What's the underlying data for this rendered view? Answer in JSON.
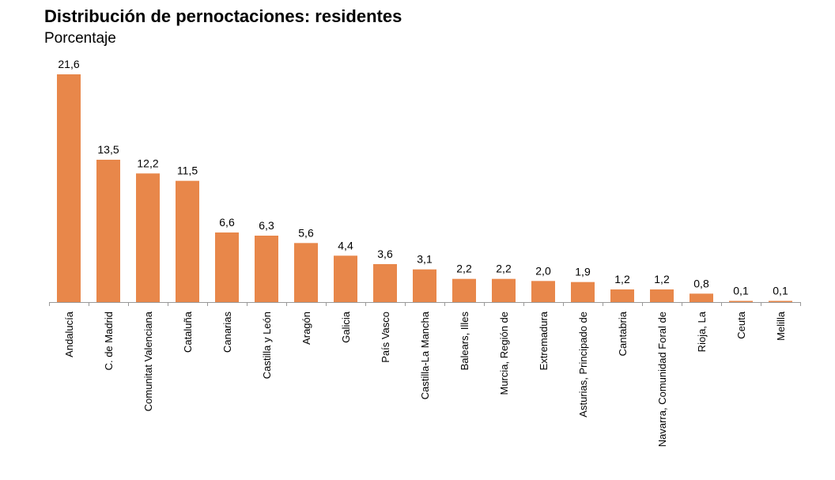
{
  "chart_data": {
    "type": "bar",
    "title": "Distribución de pernoctaciones: residentes",
    "subtitle": "Porcentaje",
    "xlabel": "",
    "ylabel": "",
    "categories": [
      "Andalucía",
      "C. de Madrid",
      "Comunitat Valenciana",
      "Cataluña",
      "Canarias",
      "Castilla y León",
      "Aragón",
      "Galicia",
      "País Vasco",
      "Castilla-La Mancha",
      "Balears, Illes",
      "Murcia, Región de",
      "Extremadura",
      "Asturias, Principado de",
      "Cantabria",
      "Navarra, Comunidad Foral de",
      "Rioja, La",
      "Ceuta",
      "Melilla"
    ],
    "values": [
      21.6,
      13.5,
      12.2,
      11.5,
      6.6,
      6.3,
      5.6,
      4.4,
      3.6,
      3.1,
      2.2,
      2.2,
      2.0,
      1.9,
      1.2,
      1.2,
      0.8,
      0.1,
      0.1
    ],
    "value_labels": [
      "21,6",
      "13,5",
      "12,2",
      "11,5",
      "6,6",
      "6,3",
      "5,6",
      "4,4",
      "3,6",
      "3,1",
      "2,2",
      "2,2",
      "2,0",
      "1,9",
      "1,2",
      "1,2",
      "0,8",
      "0,1",
      "0,1"
    ],
    "ylim": [
      0,
      21.6
    ],
    "grid": false,
    "legend": "none",
    "bar_color": "#E8874A",
    "axis_color": "#999999"
  }
}
